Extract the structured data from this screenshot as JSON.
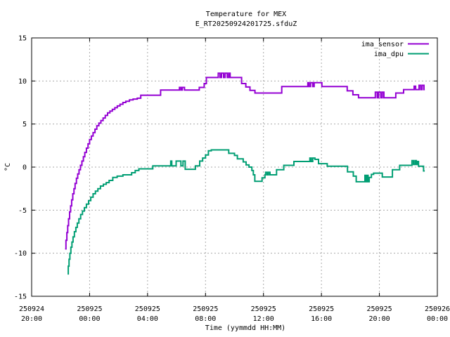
{
  "colors": {
    "background": "#ffffff",
    "border": "#000000",
    "grid": "#a9a9a9",
    "text": "#000000",
    "sensor_line": "#9400d3",
    "dpu_line": "#009e73"
  },
  "chart_data": {
    "type": "line",
    "style": "steps",
    "title": "Temperature for MEX",
    "subtitle": "E_RT20250924201725.sfduZ",
    "xlabel": "Time (yymmdd HH:MM)",
    "ylabel": "°C",
    "grid": true,
    "legend_position": "top-right-inside",
    "x_axis": {
      "unit": "hours since 250924 20:00",
      "range_hours": [
        0,
        28
      ],
      "ticks": [
        {
          "hours": 0,
          "date": "250924",
          "time": "20:00"
        },
        {
          "hours": 4,
          "date": "250925",
          "time": "00:00"
        },
        {
          "hours": 8,
          "date": "250925",
          "time": "04:00"
        },
        {
          "hours": 12,
          "date": "250925",
          "time": "08:00"
        },
        {
          "hours": 16,
          "date": "250925",
          "time": "12:00"
        },
        {
          "hours": 20,
          "date": "250925",
          "time": "16:00"
        },
        {
          "hours": 24,
          "date": "250925",
          "time": "20:00"
        },
        {
          "hours": 28,
          "date": "250926",
          "time": "00:00"
        }
      ]
    },
    "y_axis": {
      "range": [
        -15,
        15
      ],
      "ticks": [
        15,
        10,
        5,
        0,
        -5,
        -10,
        -15
      ]
    },
    "series": [
      {
        "name": "ima_sensor",
        "color": "#9400d3",
        "points": [
          [
            2.31,
            -9.5
          ],
          [
            2.37,
            -8.5
          ],
          [
            2.43,
            -7.6
          ],
          [
            2.49,
            -6.8
          ],
          [
            2.55,
            -6.0
          ],
          [
            2.62,
            -5.2
          ],
          [
            2.69,
            -4.5
          ],
          [
            2.76,
            -3.8
          ],
          [
            2.84,
            -3.1
          ],
          [
            2.92,
            -2.5
          ],
          [
            3.0,
            -1.9
          ],
          [
            3.09,
            -1.3
          ],
          [
            3.18,
            -0.8
          ],
          [
            3.27,
            -0.3
          ],
          [
            3.37,
            0.2
          ],
          [
            3.47,
            0.7
          ],
          [
            3.57,
            1.2
          ],
          [
            3.67,
            1.7
          ],
          [
            3.78,
            2.2
          ],
          [
            3.89,
            2.7
          ],
          [
            4.0,
            3.2
          ],
          [
            4.12,
            3.6
          ],
          [
            4.24,
            4.0
          ],
          [
            4.37,
            4.4
          ],
          [
            4.5,
            4.8
          ],
          [
            4.64,
            5.1
          ],
          [
            4.78,
            5.4
          ],
          [
            4.93,
            5.7
          ],
          [
            5.08,
            6.0
          ],
          [
            5.24,
            6.3
          ],
          [
            5.4,
            6.5
          ],
          [
            5.57,
            6.7
          ],
          [
            5.74,
            6.9
          ],
          [
            5.91,
            7.1
          ],
          [
            6.1,
            7.3
          ],
          [
            6.3,
            7.5
          ],
          [
            6.5,
            7.65
          ],
          [
            6.75,
            7.8
          ],
          [
            7.0,
            7.9
          ],
          [
            7.29,
            8.0
          ],
          [
            7.53,
            8.35
          ],
          [
            8.9,
            8.95
          ],
          [
            10.2,
            9.25
          ],
          [
            10.3,
            8.95
          ],
          [
            10.4,
            9.25
          ],
          [
            10.55,
            8.95
          ],
          [
            11.57,
            9.25
          ],
          [
            11.91,
            9.7
          ],
          [
            12.06,
            10.4
          ],
          [
            12.88,
            10.9
          ],
          [
            13.0,
            10.4
          ],
          [
            13.1,
            10.9
          ],
          [
            13.25,
            10.4
          ],
          [
            13.35,
            10.9
          ],
          [
            13.5,
            10.4
          ],
          [
            13.6,
            10.9
          ],
          [
            13.7,
            10.4
          ],
          [
            14.49,
            9.7
          ],
          [
            14.78,
            9.3
          ],
          [
            15.07,
            8.9
          ],
          [
            15.41,
            8.6
          ],
          [
            17.26,
            9.35
          ],
          [
            19.06,
            9.8
          ],
          [
            19.15,
            9.35
          ],
          [
            19.25,
            9.8
          ],
          [
            19.4,
            9.35
          ],
          [
            19.5,
            9.8
          ],
          [
            20.03,
            9.35
          ],
          [
            21.78,
            8.85
          ],
          [
            22.17,
            8.4
          ],
          [
            22.56,
            8.05
          ],
          [
            23.72,
            8.7
          ],
          [
            23.85,
            8.05
          ],
          [
            23.95,
            8.7
          ],
          [
            24.1,
            8.05
          ],
          [
            24.2,
            8.7
          ],
          [
            24.31,
            8.05
          ],
          [
            25.13,
            8.6
          ],
          [
            25.67,
            9.0
          ],
          [
            26.4,
            9.4
          ],
          [
            26.5,
            9.0
          ],
          [
            26.74,
            9.5
          ],
          [
            26.85,
            9.0
          ],
          [
            26.95,
            9.5
          ],
          [
            27.08,
            9.0
          ],
          [
            27.13,
            9.0
          ]
        ]
      },
      {
        "name": "ima_dpu",
        "color": "#009e73",
        "points": [
          [
            2.48,
            -12.4
          ],
          [
            2.53,
            -11.5
          ],
          [
            2.58,
            -10.7
          ],
          [
            2.64,
            -10.0
          ],
          [
            2.71,
            -9.3
          ],
          [
            2.78,
            -8.7
          ],
          [
            2.86,
            -8.1
          ],
          [
            2.95,
            -7.5
          ],
          [
            3.05,
            -7.0
          ],
          [
            3.15,
            -6.5
          ],
          [
            3.26,
            -6.0
          ],
          [
            3.38,
            -5.5
          ],
          [
            3.51,
            -5.1
          ],
          [
            3.64,
            -4.7
          ],
          [
            3.78,
            -4.3
          ],
          [
            3.93,
            -3.9
          ],
          [
            4.08,
            -3.5
          ],
          [
            4.24,
            -3.1
          ],
          [
            4.4,
            -2.8
          ],
          [
            4.57,
            -2.5
          ],
          [
            4.75,
            -2.2
          ],
          [
            4.95,
            -2.0
          ],
          [
            5.15,
            -1.8
          ],
          [
            5.35,
            -1.55
          ],
          [
            5.6,
            -1.2
          ],
          [
            5.9,
            -1.05
          ],
          [
            6.3,
            -0.9
          ],
          [
            6.9,
            -0.65
          ],
          [
            7.15,
            -0.4
          ],
          [
            7.4,
            -0.2
          ],
          [
            8.36,
            0.15
          ],
          [
            9.6,
            0.7
          ],
          [
            9.67,
            0.15
          ],
          [
            9.97,
            0.7
          ],
          [
            10.3,
            0.15
          ],
          [
            10.45,
            0.7
          ],
          [
            10.6,
            -0.25
          ],
          [
            11.3,
            0.15
          ],
          [
            11.6,
            0.7
          ],
          [
            11.8,
            1.05
          ],
          [
            12.0,
            1.4
          ],
          [
            12.2,
            1.9
          ],
          [
            12.4,
            2.0
          ],
          [
            13.6,
            1.6
          ],
          [
            14.0,
            1.35
          ],
          [
            14.2,
            0.95
          ],
          [
            14.6,
            0.6
          ],
          [
            14.8,
            0.25
          ],
          [
            15.0,
            0.0
          ],
          [
            15.2,
            -0.4
          ],
          [
            15.3,
            -0.9
          ],
          [
            15.4,
            -1.65
          ],
          [
            15.9,
            -1.25
          ],
          [
            16.1,
            -0.9
          ],
          [
            16.15,
            -0.6
          ],
          [
            16.25,
            -0.9
          ],
          [
            16.35,
            -0.6
          ],
          [
            16.45,
            -0.9
          ],
          [
            16.9,
            -0.3
          ],
          [
            17.4,
            0.2
          ],
          [
            18.1,
            0.65
          ],
          [
            19.2,
            1.05
          ],
          [
            19.3,
            0.65
          ],
          [
            19.4,
            1.05
          ],
          [
            19.55,
            0.9
          ],
          [
            19.8,
            0.4
          ],
          [
            20.4,
            0.1
          ],
          [
            21.8,
            -0.55
          ],
          [
            22.2,
            -1.05
          ],
          [
            22.4,
            -1.7
          ],
          [
            23.0,
            -0.95
          ],
          [
            23.08,
            -1.7
          ],
          [
            23.15,
            -0.95
          ],
          [
            23.22,
            -1.7
          ],
          [
            23.3,
            -1.2
          ],
          [
            23.45,
            -0.85
          ],
          [
            23.6,
            -0.7
          ],
          [
            24.2,
            -1.15
          ],
          [
            24.9,
            -0.3
          ],
          [
            25.4,
            0.2
          ],
          [
            26.25,
            0.75
          ],
          [
            26.35,
            0.3
          ],
          [
            26.45,
            0.75
          ],
          [
            26.55,
            0.3
          ],
          [
            26.62,
            0.65
          ],
          [
            26.7,
            0.1
          ],
          [
            27.05,
            -0.45
          ],
          [
            27.13,
            -0.45
          ]
        ]
      }
    ]
  }
}
